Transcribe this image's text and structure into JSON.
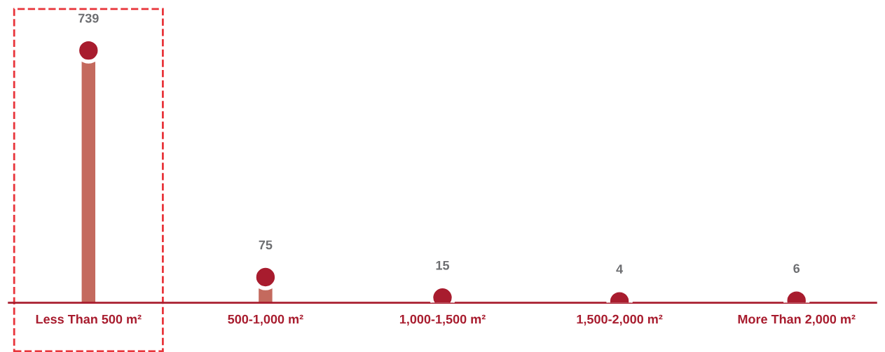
{
  "chart_data": {
    "type": "lollipop",
    "categories": [
      "Less Than 500 m²",
      "500-1,000 m²",
      "1,000-1,500 m²",
      "1,500-2,000 m²",
      "More Than 2,000 m²"
    ],
    "values": [
      739,
      75,
      15,
      4,
      6
    ],
    "color": "#a81c2e",
    "marker": "circle",
    "data_labels": true,
    "tick_labels": "x",
    "grid": false
  }
}
